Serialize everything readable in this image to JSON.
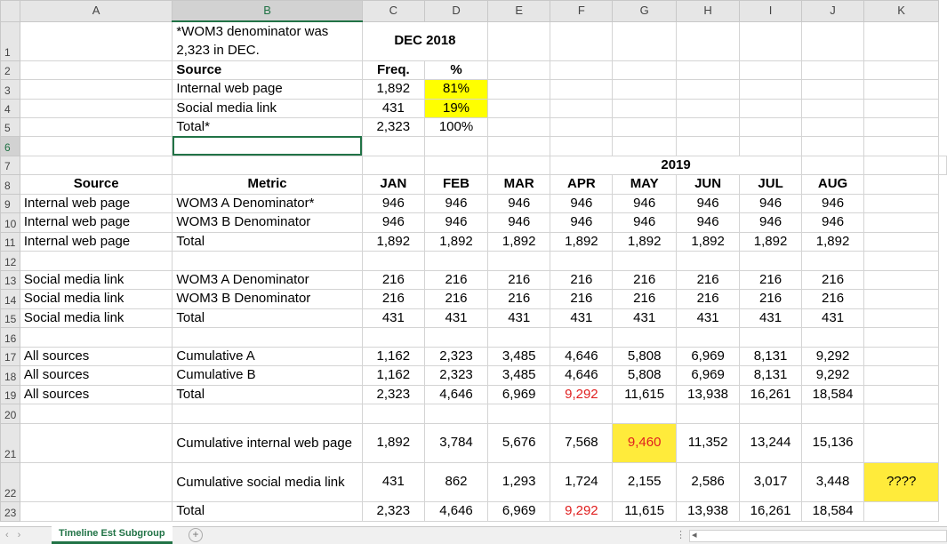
{
  "columns": [
    "A",
    "B",
    "C",
    "D",
    "E",
    "F",
    "G",
    "H",
    "I",
    "J",
    "K"
  ],
  "rows": [
    "1",
    "2",
    "3",
    "4",
    "5",
    "6",
    "7",
    "8",
    "9",
    "10",
    "11",
    "12",
    "13",
    "14",
    "15",
    "16",
    "17",
    "18",
    "19",
    "20",
    "21",
    "22",
    "23"
  ],
  "r1": {
    "note": "*WOM3 denominator was 2,323 in DEC.",
    "period": "DEC 2018"
  },
  "r2": {
    "source": "Source",
    "freq": "Freq.",
    "pct": "%"
  },
  "r3": {
    "label": "Internal web page",
    "freq": "1,892",
    "pct": "81%"
  },
  "r4": {
    "label": "Social media link",
    "freq": "431",
    "pct": "19%"
  },
  "r5": {
    "label": "Total*",
    "freq": "2,323",
    "pct": "100%"
  },
  "year": "2019",
  "header": {
    "source": "Source",
    "metric": "Metric",
    "months": [
      "JAN",
      "FEB",
      "MAR",
      "APR",
      "MAY",
      "JUN",
      "JUL",
      "AUG"
    ]
  },
  "r9": {
    "a": "Internal web page",
    "b": "WOM3 A Denominator*",
    "v": [
      "946",
      "946",
      "946",
      "946",
      "946",
      "946",
      "946",
      "946"
    ]
  },
  "r10": {
    "a": "Internal web page",
    "b": "WOM3 B Denominator",
    "v": [
      "946",
      "946",
      "946",
      "946",
      "946",
      "946",
      "946",
      "946"
    ]
  },
  "r11": {
    "a": "Internal web page",
    "b": "Total",
    "v": [
      "1,892",
      "1,892",
      "1,892",
      "1,892",
      "1,892",
      "1,892",
      "1,892",
      "1,892"
    ]
  },
  "r13": {
    "a": "Social media link",
    "b": "WOM3 A Denominator",
    "v": [
      "216",
      "216",
      "216",
      "216",
      "216",
      "216",
      "216",
      "216"
    ]
  },
  "r14": {
    "a": "Social media link",
    "b": "WOM3 B Denominator",
    "v": [
      "216",
      "216",
      "216",
      "216",
      "216",
      "216",
      "216",
      "216"
    ]
  },
  "r15": {
    "a": "Social media link",
    "b": "Total",
    "v": [
      "431",
      "431",
      "431",
      "431",
      "431",
      "431",
      "431",
      "431"
    ]
  },
  "r17": {
    "a": "All sources",
    "b": "Cumulative A",
    "v": [
      "1,162",
      "2,323",
      "3,485",
      "4,646",
      "5,808",
      "6,969",
      "8,131",
      "9,292"
    ]
  },
  "r18": {
    "a": "All sources",
    "b": "Cumulative B",
    "v": [
      "1,162",
      "2,323",
      "3,485",
      "4,646",
      "5,808",
      "6,969",
      "8,131",
      "9,292"
    ]
  },
  "r19": {
    "a": "All sources",
    "b": "Total",
    "v": [
      "2,323",
      "4,646",
      "6,969",
      "9,292",
      "11,615",
      "13,938",
      "16,261",
      "18,584"
    ]
  },
  "r21": {
    "b": "Cumulative internal web page",
    "v": [
      "1,892",
      "3,784",
      "5,676",
      "7,568",
      "9,460",
      "11,352",
      "13,244",
      "15,136"
    ]
  },
  "r22": {
    "b": "Cumulative social media link",
    "v": [
      "431",
      "862",
      "1,293",
      "1,724",
      "2,155",
      "2,586",
      "3,017",
      "3,448"
    ],
    "k": "????"
  },
  "r23": {
    "b": "Total",
    "v": [
      "2,323",
      "4,646",
      "6,969",
      "9,292",
      "11,615",
      "13,938",
      "16,261",
      "18,584"
    ]
  },
  "sheet_tab": "Timeline Est Subgroup",
  "colors": {
    "highlight": "#ffff00",
    "red_text": "#e02020",
    "excel_green": "#217346"
  }
}
